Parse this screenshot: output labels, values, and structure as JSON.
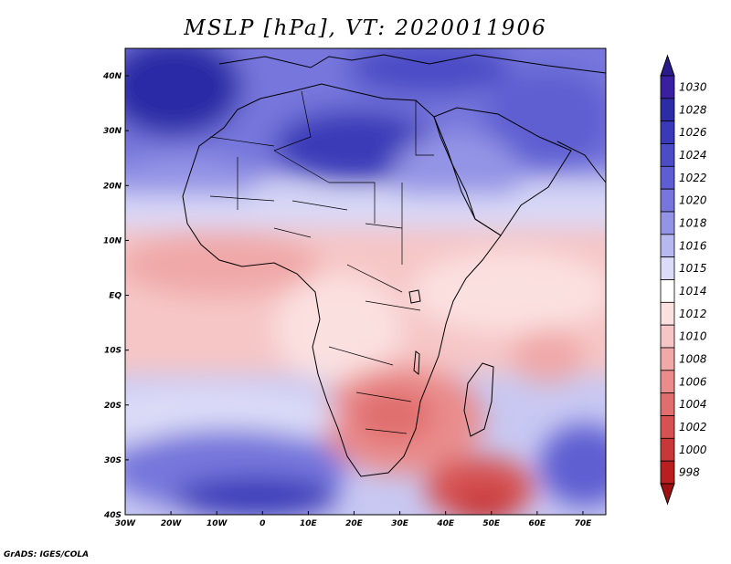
{
  "title": "MSLP [hPa], VT: 2020011906",
  "credit": "GrADS: IGES/COLA",
  "x_axis": {
    "ticks": [
      {
        "label": "30W",
        "value": -30
      },
      {
        "label": "20W",
        "value": -20
      },
      {
        "label": "10W",
        "value": -10
      },
      {
        "label": "0",
        "value": 0
      },
      {
        "label": "10E",
        "value": 10
      },
      {
        "label": "20E",
        "value": 20
      },
      {
        "label": "30E",
        "value": 30
      },
      {
        "label": "40E",
        "value": 40
      },
      {
        "label": "50E",
        "value": 50
      },
      {
        "label": "60E",
        "value": 60
      },
      {
        "label": "70E",
        "value": 70
      }
    ],
    "range": [
      -30,
      75
    ]
  },
  "y_axis": {
    "ticks": [
      {
        "label": "40N",
        "value": 40
      },
      {
        "label": "30N",
        "value": 30
      },
      {
        "label": "20N",
        "value": 20
      },
      {
        "label": "10N",
        "value": 10
      },
      {
        "label": "EQ",
        "value": 0
      },
      {
        "label": "10S",
        "value": -10
      },
      {
        "label": "20S",
        "value": -20
      },
      {
        "label": "30S",
        "value": -30
      },
      {
        "label": "40S",
        "value": -40
      }
    ],
    "range": [
      -40,
      45
    ]
  },
  "colorbar": {
    "levels": [
      {
        "label": "1030",
        "color": "#3a1fa0"
      },
      {
        "label": "1028",
        "color": "#2c2ca6"
      },
      {
        "label": "1026",
        "color": "#3a3ab8"
      },
      {
        "label": "1024",
        "color": "#4c4cc6"
      },
      {
        "label": "1022",
        "color": "#5e5ed2"
      },
      {
        "label": "1020",
        "color": "#7676dc"
      },
      {
        "label": "1018",
        "color": "#9494e6"
      },
      {
        "label": "1016",
        "color": "#b8b8f0"
      },
      {
        "label": "1015",
        "color": "#dcdcf8"
      },
      {
        "label": "1014",
        "color": "#ffffff"
      },
      {
        "label": "1012",
        "color": "#fbe0e0"
      },
      {
        "label": "1010",
        "color": "#f6c6c6"
      },
      {
        "label": "1008",
        "color": "#f0a8a8"
      },
      {
        "label": "1006",
        "color": "#ea8c8c"
      },
      {
        "label": "1004",
        "color": "#e06e6e"
      },
      {
        "label": "1002",
        "color": "#d65252"
      },
      {
        "label": "1000",
        "color": "#c83838"
      },
      {
        "label": "998",
        "color": "#b82020"
      }
    ],
    "over_color": "#2a1a8c",
    "under_color": "#a01010"
  }
}
